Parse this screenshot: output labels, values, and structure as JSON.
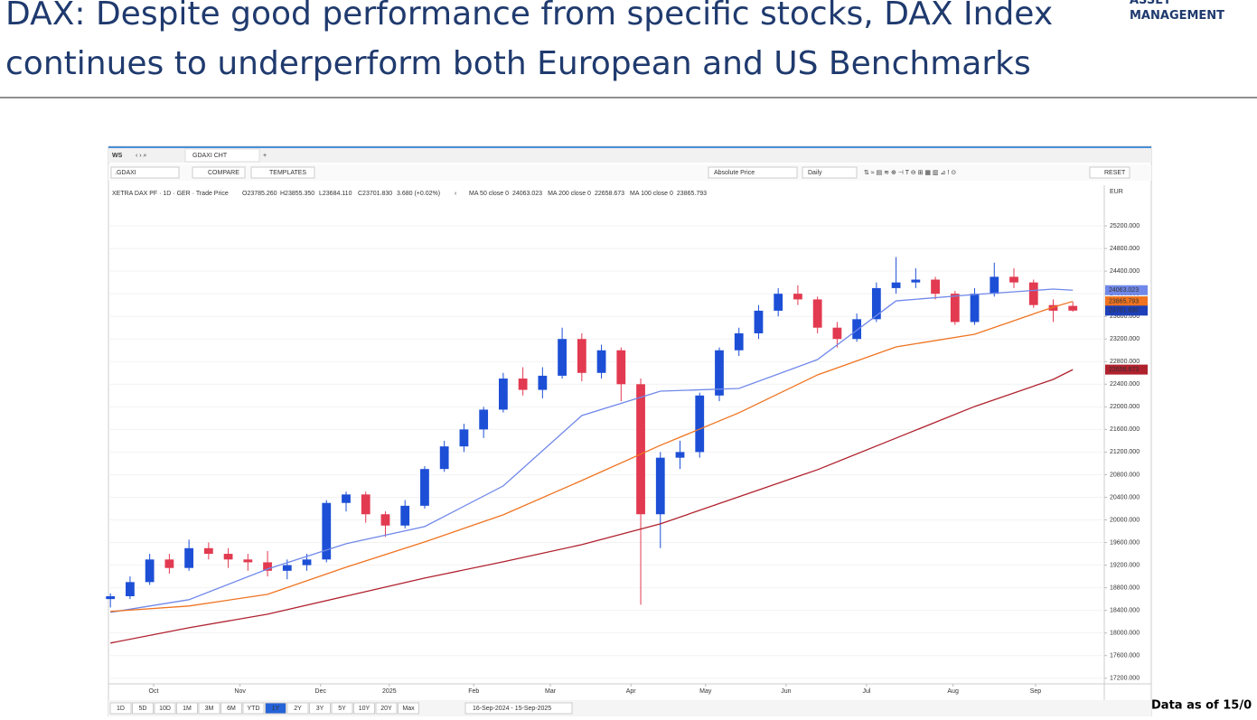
{
  "header": {
    "title_line1": "DAX: Despite good performance from specific stocks, DAX Index",
    "title_line2": "continues to underperform both European and US Benchmarks",
    "logo_line1": "ASSET",
    "logo_line2": "MANAGEMENT",
    "footnote": "Data as of 15/0"
  },
  "toolbar": {
    "workspace": "WS",
    "tab": "GDAXI CHT",
    "ric": ".GDAXI",
    "compare": "COMPARE",
    "templates": "TEMPLATES",
    "price_mode": "Absolute Price",
    "interval": "Daily",
    "reset": "RESET",
    "currency": "EUR"
  },
  "legend": {
    "instrument": "XETRA DAX PF · 1D · GER · Trade Price",
    "open": "O23785.260",
    "high": "H23855.350",
    "low": "L23684.110",
    "close": "C23701.830",
    "change": "3.680 (+0.02%)"
  },
  "ranges": [
    "1D",
    "5D",
    "10D",
    "1M",
    "3M",
    "6M",
    "YTD",
    "1Y",
    "2Y",
    "3Y",
    "5Y",
    "10Y",
    "20Y",
    "Max"
  ],
  "active_range": "1Y",
  "date_range": "16-Sep-2024 - 15-Sep-2025",
  "chart_data": {
    "type": "candlestick",
    "up_color": "#1d4fd6",
    "down_color": "#e23a50",
    "open": [
      18600,
      18650,
      18900,
      19300,
      19150,
      19500,
      19400,
      19300,
      19250,
      19100,
      19200,
      19300,
      20300,
      20450,
      20100,
      19900,
      20250,
      20900,
      21300,
      21600,
      21950,
      22500,
      22300,
      22550,
      23200,
      22600,
      23000,
      22400,
      20100,
      21100,
      21200,
      22200,
      23000,
      23300,
      23700,
      24000,
      23900,
      23400,
      23200,
      23550,
      24100,
      24200,
      24250,
      24000,
      23500,
      24000,
      24300,
      24200,
      23800,
      23785.26
    ],
    "high": [
      18700,
      19000,
      19400,
      19400,
      19650,
      19600,
      19500,
      19400,
      19450,
      19300,
      19400,
      20350,
      20500,
      20500,
      20150,
      20350,
      20950,
      21400,
      21700,
      22000,
      22600,
      22700,
      22700,
      23400,
      23300,
      23100,
      23050,
      22500,
      21200,
      21400,
      22250,
      23050,
      23400,
      23800,
      24100,
      24150,
      23950,
      23500,
      23650,
      24200,
      24650,
      24450,
      24300,
      24050,
      24100,
      24550,
      24450,
      24250,
      23900,
      23855.35
    ],
    "low": [
      18450,
      18600,
      18850,
      19050,
      19100,
      19300,
      19150,
      19100,
      19000,
      18950,
      19100,
      19250,
      20150,
      19950,
      19700,
      19850,
      20200,
      20850,
      21200,
      21450,
      21900,
      22200,
      22150,
      22500,
      22450,
      22500,
      22100,
      18500,
      19500,
      20900,
      21100,
      22100,
      22900,
      23200,
      23600,
      23800,
      23300,
      23050,
      23150,
      23500,
      24000,
      24100,
      23900,
      23450,
      23450,
      23950,
      24100,
      23750,
      23500,
      23684.11
    ],
    "close": [
      18650,
      18900,
      19300,
      19150,
      19500,
      19400,
      19300,
      19250,
      19100,
      19200,
      19300,
      20300,
      20450,
      20100,
      19900,
      20250,
      20900,
      21300,
      21600,
      21950,
      22500,
      22300,
      22550,
      23200,
      22600,
      23000,
      22400,
      20100,
      21100,
      21200,
      22200,
      23000,
      23300,
      23700,
      24000,
      23900,
      23400,
      23200,
      23550,
      24100,
      24200,
      24250,
      24000,
      23500,
      24000,
      24300,
      24200,
      23800,
      23700,
      23701.83
    ],
    "last_close_label": "23701.830",
    "last_close_color": "#1d3fb8",
    "series": [
      {
        "name": "MA 50 close 0",
        "color": "#7088ea",
        "x": [
          0,
          4,
          8,
          12,
          16,
          20,
          24,
          28,
          32,
          36,
          40,
          44,
          48,
          49
        ],
        "values": [
          18365,
          18589,
          19131,
          19579,
          19882,
          20601,
          21846,
          22277,
          22325,
          22836,
          23874,
          23986,
          24082,
          24063.023
        ]
      },
      {
        "name": "MA 200 close 0",
        "color": "#b0212e",
        "x": [
          0,
          4,
          8,
          12,
          16,
          20,
          24,
          28,
          32,
          36,
          40,
          44,
          48,
          49
        ],
        "values": [
          17822,
          18093,
          18333,
          18652,
          18971,
          19259,
          19562,
          19930,
          20409,
          20888,
          21447,
          22006,
          22485,
          22658.673
        ]
      },
      {
        "name": "MA 100 close 0",
        "color": "#ef7320",
        "x": [
          0,
          4,
          8,
          12,
          16,
          20,
          24,
          28,
          32,
          36,
          40,
          44,
          48,
          49
        ],
        "values": [
          18381,
          18477,
          18684,
          19163,
          19611,
          20090,
          20697,
          21319,
          21894,
          22565,
          23060,
          23284,
          23763,
          23865.793
        ]
      }
    ],
    "xlim": [
      -0.1,
      50.6
    ],
    "xticks": [
      {
        "value": 2.2,
        "label": "Oct"
      },
      {
        "value": 6.6,
        "label": "Nov"
      },
      {
        "value": 10.7,
        "label": "Dec"
      },
      {
        "value": 14.2,
        "label": "2025"
      },
      {
        "value": 18.5,
        "label": "Feb"
      },
      {
        "value": 22.4,
        "label": "Mar"
      },
      {
        "value": 26.5,
        "label": "Apr"
      },
      {
        "value": 30.3,
        "label": "May"
      },
      {
        "value": 34.4,
        "label": "Jun"
      },
      {
        "value": 38.5,
        "label": "Jul"
      },
      {
        "value": 42.9,
        "label": "Aug"
      },
      {
        "value": 47.1,
        "label": "Sep"
      }
    ],
    "ylim": [
      17100,
      25920
    ],
    "yticks": [
      {
        "value": 17200,
        "label": "17200.000"
      },
      {
        "value": 17600,
        "label": "17600.000"
      },
      {
        "value": 18000,
        "label": "18000.000"
      },
      {
        "value": 18400,
        "label": "18400.000"
      },
      {
        "value": 18800,
        "label": "18800.000"
      },
      {
        "value": 19200,
        "label": "19200.000"
      },
      {
        "value": 19600,
        "label": "19600.000"
      },
      {
        "value": 20000,
        "label": "20000.000"
      },
      {
        "value": 20400,
        "label": "20400.000"
      },
      {
        "value": 20800,
        "label": "20800.000"
      },
      {
        "value": 21200,
        "label": "21200.000"
      },
      {
        "value": 21600,
        "label": "21600.000"
      },
      {
        "value": 22000,
        "label": "22000.000"
      },
      {
        "value": 22400,
        "label": "22400.000"
      },
      {
        "value": 22800,
        "label": "22800.000"
      },
      {
        "value": 23200,
        "label": "23200.000"
      },
      {
        "value": 23600,
        "label": "23600.000"
      },
      {
        "value": 24000,
        "label": "24000.000"
      },
      {
        "value": 24400,
        "label": "24400.000"
      },
      {
        "value": 24800,
        "label": "24800.000"
      },
      {
        "value": 25200,
        "label": "25200.000"
      }
    ],
    "grid": true
  }
}
